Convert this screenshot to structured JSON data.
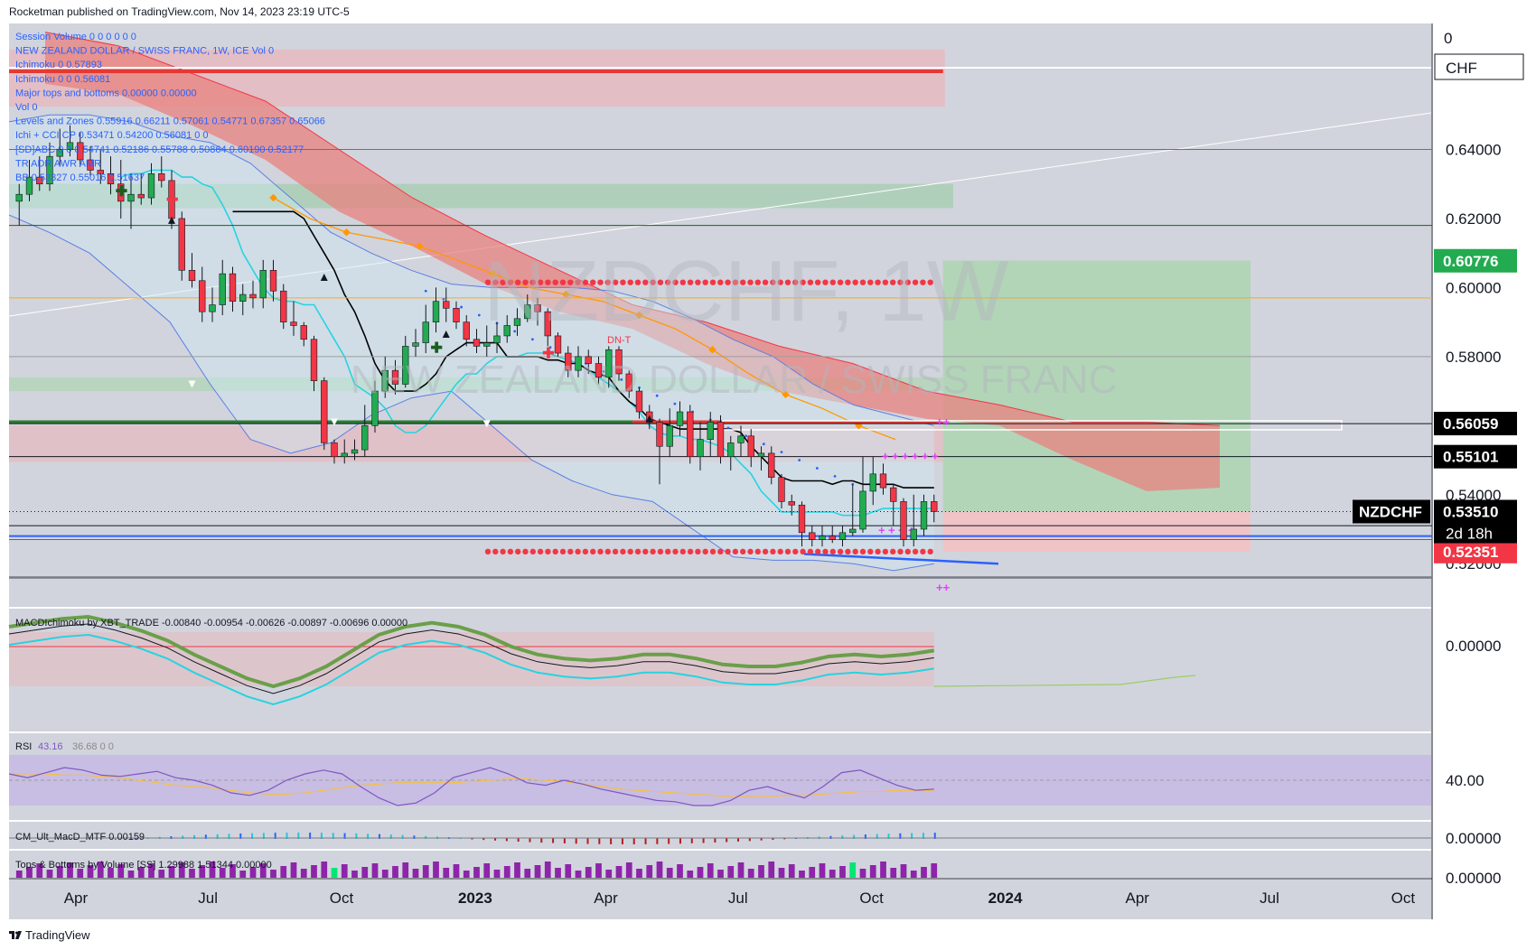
{
  "header": {
    "publisher_line": "Rocketman published on TradingView.com, Nov 14, 2023 23:19 UTC-5"
  },
  "footer": {
    "brand": "TradingView"
  },
  "watermark": {
    "symbol": "NZDCHF, 1W",
    "name": "NEW ZEALAND DOLLAR / SWISS FRANC"
  },
  "currency_box": "CHF",
  "top_scale_label": "0",
  "legend_lines": [
    {
      "text": "Session Volume  0  0  0  0  0  0",
      "color": "#2962ff"
    },
    {
      "text": "NEW ZEALAND DOLLAR / SWISS FRANC, 1W, ICE   Vol 0",
      "color": "#2962ff"
    },
    {
      "text": "Ichimoku  0  0.57893",
      "color": "#2962ff"
    },
    {
      "text": "Ichimoku  0  0  0.56081",
      "color": "#2962ff"
    },
    {
      "text": "Major tops and bottoms  0.00000  0.00000",
      "color": "#2962ff"
    },
    {
      "text": "Vol  0",
      "color": "#2962ff"
    },
    {
      "text": "Levels and Zones  0.55916  0.66211  0.57061  0.54771  0.67357  0.65066",
      "color": "#2962ff"
    },
    {
      "text": "Ichi + CCI  CP  0.53471  0.54200  0.56081  0  0",
      "color": "#2962ff"
    },
    {
      "text": "[SD]ABC  0  0  0.54741  0.52186  0.55788  0.50864  0.60190  0.52177",
      "color": "#2962ff"
    },
    {
      "text": "TR ADR AWR AMR",
      "color": "#2962ff"
    },
    {
      "text": "BB  0.53327  0.55016  0.51637",
      "color": "#2962ff"
    }
  ],
  "price_axis": {
    "ticks": [
      "0.64000",
      "0.62000",
      "0.60000",
      "0.58000",
      "0.54000",
      "0.52000"
    ],
    "price_tags": [
      {
        "label": "0.60776",
        "price": 0.60776,
        "bg": "#22ab50",
        "fg": "#ffffff"
      },
      {
        "label": "0.56059",
        "price": 0.56059,
        "bg": "#000000",
        "fg": "#ffffff"
      },
      {
        "label": "0.55101",
        "price": 0.55101,
        "bg": "#000000",
        "fg": "#ffffff"
      },
      {
        "label": "0.53510",
        "price": 0.5351,
        "bg": "#000000",
        "fg": "#ffffff"
      },
      {
        "label": "0.52351",
        "price": 0.52351,
        "bg": "#f23645",
        "fg": "#ffffff"
      }
    ],
    "symbol_tag": "NZDCHF",
    "countdown": "2d 18h"
  },
  "time_axis": {
    "labels": [
      {
        "text": "Apr",
        "bold": false
      },
      {
        "text": "Jul",
        "bold": false
      },
      {
        "text": "Oct",
        "bold": false
      },
      {
        "text": "2023",
        "bold": true
      },
      {
        "text": "Apr",
        "bold": false
      },
      {
        "text": "Jul",
        "bold": false
      },
      {
        "text": "Oct",
        "bold": false
      },
      {
        "text": "2024",
        "bold": true
      },
      {
        "text": "Apr",
        "bold": false
      },
      {
        "text": "Jul",
        "bold": false
      },
      {
        "text": "Oct",
        "bold": false
      }
    ]
  },
  "chart_annotations": {
    "dn_label": "DN-T"
  },
  "indicator_panes": {
    "macd": {
      "legend": "MACDIchimoku by XBT_TRADE  -0.00840  -0.00954  -0.00626  -0.00897  -0.00696  0.00000",
      "axis_label": "0.00000"
    },
    "rsi": {
      "legend_name": "RSI",
      "legend_value": "43.16",
      "legend_rest": "36.68  0  0",
      "axis_label": "40.00"
    },
    "cm_macd": {
      "legend": "CM_Ult_MacD_MTF  0.00159",
      "axis_label": "0.00000"
    },
    "tops_bottoms": {
      "legend": "Tops & Bottoms by Volume [SS]  1.29988  1.51344  0.00000",
      "axis_label": "0.00000"
    }
  },
  "colors": {
    "up": "#22ab50",
    "down": "#f23645",
    "cloud_red": "#e8817f",
    "ichi_span": "#cfe8f2",
    "kijun": "#000000",
    "tenkan": "#27d3e0",
    "orange": "#ff9800",
    "bb": "#5b7ee5",
    "long_tp": "#a5d6a7",
    "long_sl": "#f6c1c3",
    "bg": "#d1d4dc"
  },
  "chart_data": {
    "type": "candlestick",
    "title": "NZDCHF, 1W",
    "xlabel": "",
    "ylabel": "CHF",
    "ylim": [
      0.5075,
      0.6765
    ],
    "x_range": [
      "2022-02-14",
      "2024-10-21"
    ],
    "x": [
      "2022-02-21",
      "2022-02-28",
      "2022-03-07",
      "2022-03-14",
      "2022-03-21",
      "2022-03-28",
      "2022-04-04",
      "2022-04-11",
      "2022-04-18",
      "2022-04-25",
      "2022-05-02",
      "2022-05-09",
      "2022-05-16",
      "2022-05-23",
      "2022-05-30",
      "2022-06-06",
      "2022-06-13",
      "2022-06-20",
      "2022-06-27",
      "2022-07-04",
      "2022-07-11",
      "2022-07-18",
      "2022-07-25",
      "2022-08-01",
      "2022-08-08",
      "2022-08-15",
      "2022-08-22",
      "2022-08-29",
      "2022-09-05",
      "2022-09-12",
      "2022-09-19",
      "2022-09-26",
      "2022-10-03",
      "2022-10-10",
      "2022-10-17",
      "2022-10-24",
      "2022-10-31",
      "2022-11-07",
      "2022-11-14",
      "2022-11-21",
      "2022-11-28",
      "2022-12-05",
      "2022-12-12",
      "2022-12-19",
      "2022-12-26",
      "2023-01-02",
      "2023-01-09",
      "2023-01-16",
      "2023-01-23",
      "2023-01-30",
      "2023-02-06",
      "2023-02-13",
      "2023-02-20",
      "2023-02-27",
      "2023-03-06",
      "2023-03-13",
      "2023-03-20",
      "2023-03-27",
      "2023-04-03",
      "2023-04-10",
      "2023-04-17",
      "2023-04-24",
      "2023-05-01",
      "2023-05-08",
      "2023-05-15",
      "2023-05-22",
      "2023-05-29",
      "2023-06-05",
      "2023-06-12",
      "2023-06-19",
      "2023-06-26",
      "2023-07-03",
      "2023-07-10",
      "2023-07-17",
      "2023-07-24",
      "2023-07-31",
      "2023-08-07",
      "2023-08-14",
      "2023-08-21",
      "2023-08-28",
      "2023-09-04",
      "2023-09-11",
      "2023-09-18",
      "2023-09-25",
      "2023-10-02",
      "2023-10-09",
      "2023-10-16",
      "2023-10-23",
      "2023-10-30",
      "2023-11-06",
      "2023-11-13"
    ],
    "open": [
      0.625,
      0.627,
      0.632,
      0.63,
      0.638,
      0.64,
      0.642,
      0.637,
      0.634,
      0.633,
      0.63,
      0.625,
      0.627,
      0.626,
      0.633,
      0.631,
      0.62,
      0.605,
      0.602,
      0.593,
      0.595,
      0.604,
      0.596,
      0.598,
      0.597,
      0.605,
      0.599,
      0.59,
      0.589,
      0.585,
      0.573,
      0.555,
      0.551,
      0.552,
      0.553,
      0.56,
      0.57,
      0.576,
      0.572,
      0.583,
      0.584,
      0.59,
      0.596,
      0.594,
      0.59,
      0.585,
      0.583,
      0.584,
      0.586,
      0.589,
      0.591,
      0.595,
      0.593,
      0.586,
      0.581,
      0.576,
      0.58,
      0.578,
      0.574,
      0.582,
      0.575,
      0.57,
      0.564,
      0.561,
      0.554,
      0.56,
      0.564,
      0.551,
      0.556,
      0.561,
      0.551,
      0.555,
      0.557,
      0.551,
      0.552,
      0.545,
      0.538,
      0.537,
      0.529,
      0.527,
      0.528,
      0.527,
      0.529,
      0.53,
      0.541,
      0.546,
      0.542,
      0.538,
      0.527,
      0.53,
      0.538
    ],
    "high": [
      0.63,
      0.637,
      0.638,
      0.642,
      0.646,
      0.647,
      0.645,
      0.641,
      0.64,
      0.638,
      0.637,
      0.633,
      0.633,
      0.636,
      0.638,
      0.634,
      0.622,
      0.61,
      0.606,
      0.6,
      0.608,
      0.606,
      0.601,
      0.602,
      0.608,
      0.608,
      0.601,
      0.596,
      0.59,
      0.586,
      0.574,
      0.556,
      0.556,
      0.556,
      0.566,
      0.573,
      0.58,
      0.579,
      0.586,
      0.588,
      0.595,
      0.6,
      0.6,
      0.596,
      0.592,
      0.588,
      0.589,
      0.59,
      0.592,
      0.594,
      0.598,
      0.597,
      0.594,
      0.587,
      0.583,
      0.583,
      0.582,
      0.58,
      0.583,
      0.583,
      0.576,
      0.571,
      0.566,
      0.562,
      0.565,
      0.567,
      0.566,
      0.561,
      0.564,
      0.563,
      0.557,
      0.56,
      0.559,
      0.554,
      0.554,
      0.546,
      0.54,
      0.538,
      0.531,
      0.531,
      0.531,
      0.531,
      0.543,
      0.551,
      0.551,
      0.549,
      0.543,
      0.539,
      0.54,
      0.54,
      0.54
    ],
    "low": [
      0.618,
      0.625,
      0.628,
      0.628,
      0.635,
      0.638,
      0.635,
      0.632,
      0.63,
      0.627,
      0.62,
      0.617,
      0.624,
      0.624,
      0.629,
      0.617,
      0.602,
      0.6,
      0.59,
      0.59,
      0.592,
      0.593,
      0.592,
      0.594,
      0.594,
      0.596,
      0.588,
      0.586,
      0.583,
      0.57,
      0.553,
      0.549,
      0.549,
      0.55,
      0.551,
      0.558,
      0.568,
      0.569,
      0.571,
      0.58,
      0.581,
      0.587,
      0.59,
      0.588,
      0.583,
      0.581,
      0.58,
      0.581,
      0.584,
      0.586,
      0.59,
      0.589,
      0.583,
      0.58,
      0.574,
      0.574,
      0.575,
      0.572,
      0.571,
      0.573,
      0.568,
      0.562,
      0.559,
      0.543,
      0.551,
      0.557,
      0.549,
      0.547,
      0.551,
      0.549,
      0.547,
      0.551,
      0.548,
      0.547,
      0.543,
      0.536,
      0.534,
      0.525,
      0.525,
      0.525,
      0.526,
      0.525,
      0.528,
      0.529,
      0.537,
      0.54,
      0.531,
      0.525,
      0.525,
      0.528,
      0.532
    ],
    "close": [
      0.627,
      0.632,
      0.63,
      0.638,
      0.64,
      0.642,
      0.637,
      0.634,
      0.633,
      0.63,
      0.625,
      0.627,
      0.626,
      0.633,
      0.631,
      0.62,
      0.605,
      0.602,
      0.593,
      0.595,
      0.604,
      0.596,
      0.598,
      0.597,
      0.605,
      0.599,
      0.59,
      0.589,
      0.585,
      0.573,
      0.555,
      0.551,
      0.552,
      0.553,
      0.56,
      0.57,
      0.576,
      0.572,
      0.583,
      0.584,
      0.59,
      0.596,
      0.594,
      0.59,
      0.585,
      0.583,
      0.584,
      0.586,
      0.589,
      0.591,
      0.595,
      0.593,
      0.586,
      0.581,
      0.576,
      0.58,
      0.578,
      0.574,
      0.582,
      0.575,
      0.57,
      0.564,
      0.561,
      0.554,
      0.56,
      0.564,
      0.551,
      0.556,
      0.561,
      0.551,
      0.555,
      0.557,
      0.551,
      0.552,
      0.545,
      0.538,
      0.537,
      0.529,
      0.527,
      0.528,
      0.527,
      0.529,
      0.53,
      0.541,
      0.546,
      0.542,
      0.538,
      0.527,
      0.53,
      0.538,
      0.5351
    ],
    "kijun": [
      0.632,
      0.633,
      0.633,
      0.634,
      0.634,
      0.634,
      0.632,
      0.632,
      0.63,
      0.629,
      0.624,
      0.618,
      0.61,
      0.605,
      0.6,
      0.597,
      0.596,
      0.596,
      0.595,
      0.595,
      0.59,
      0.585,
      0.58,
      0.572,
      0.57,
      0.568,
      0.565,
      0.56,
      0.558,
      0.558,
      0.56,
      0.564,
      0.568,
      0.572,
      0.575,
      0.575,
      0.578,
      0.58,
      0.58,
      0.58,
      0.581,
      0.581,
      0.581,
      0.58,
      0.579,
      0.578,
      0.576,
      0.574,
      0.572,
      0.57,
      0.567,
      0.564,
      0.56,
      0.558,
      0.557,
      0.557,
      0.556,
      0.556,
      0.555,
      0.554,
      0.552,
      0.549,
      0.546,
      0.541,
      0.538,
      0.535,
      0.535,
      0.535,
      0.535,
      0.535,
      0.535,
      0.534,
      0.534,
      0.534,
      0.535,
      0.536,
      0.536,
      0.536,
      0.536,
      0.536,
      0.536
    ],
    "kijun_x0": 10,
    "tenkan": [
      0.622,
      0.622,
      0.622,
      0.622,
      0.622,
      0.622,
      0.622,
      0.62,
      0.615,
      0.61,
      0.605,
      0.598,
      0.593,
      0.586,
      0.578,
      0.573,
      0.57,
      0.57,
      0.57,
      0.572,
      0.575,
      0.58,
      0.582,
      0.584,
      0.584,
      0.584,
      0.584,
      0.58,
      0.58,
      0.58,
      0.58,
      0.579,
      0.579,
      0.578,
      0.578,
      0.576,
      0.575,
      0.574,
      0.57,
      0.567,
      0.565,
      0.562,
      0.561,
      0.56,
      0.559,
      0.559,
      0.559,
      0.559,
      0.559,
      0.559,
      0.558,
      0.554,
      0.551,
      0.548,
      0.545,
      0.544,
      0.544,
      0.544,
      0.544,
      0.543,
      0.544,
      0.544,
      0.543,
      0.543,
      0.543,
      0.543,
      0.542,
      0.542,
      0.542,
      0.542
    ],
    "tenkan_x0": 21,
    "span_a_upper": [
      0.674,
      0.674,
      0.674,
      0.674,
      0.674,
      0.67,
      0.664,
      0.66,
      0.654,
      0.646,
      0.638,
      0.63,
      0.622,
      0.612,
      0.604,
      0.596,
      0.588,
      0.583,
      0.579,
      0.578
    ],
    "cloud_x": [
      0.0,
      0.05,
      0.1,
      0.2,
      0.3,
      0.4,
      0.5,
      0.6,
      0.7,
      0.8
    ],
    "bb_upper": [
      0.648,
      0.65,
      0.65,
      0.648,
      0.644,
      0.642,
      0.636,
      0.626,
      0.616,
      0.61,
      0.605,
      0.601,
      0.6,
      0.6,
      0.6,
      0.599,
      0.596,
      0.591,
      0.585,
      0.58,
      0.572,
      0.566,
      0.563,
      0.56
    ],
    "bb_lower": [
      0.621,
      0.616,
      0.61,
      0.6,
      0.59,
      0.572,
      0.556,
      0.552,
      0.555,
      0.563,
      0.568,
      0.57,
      0.56,
      0.55,
      0.544,
      0.54,
      0.538,
      0.53,
      0.522,
      0.521,
      0.521,
      0.52,
      0.518,
      0.52
    ],
    "red_dot_lines": [
      0.6015,
      0.5235
    ],
    "support_levels": [
      0.561,
      0.5235,
      0.521,
      0.618,
      0.64
    ],
    "trade_setup": {
      "type": "long",
      "entry": 0.5351,
      "stop": 0.5235,
      "target": 0.6078
    }
  },
  "rsi_data": {
    "values": [
      55,
      52,
      56,
      60,
      58,
      54,
      53,
      55,
      57,
      52,
      50,
      46,
      40,
      38,
      42,
      50,
      55,
      58,
      55,
      45,
      36,
      30,
      32,
      40,
      52,
      56,
      60,
      55,
      48,
      46,
      50,
      47,
      43,
      40,
      37,
      34,
      33,
      30,
      30,
      34,
      42,
      45,
      40,
      36,
      45,
      56,
      58,
      52,
      46,
      42,
      43
    ],
    "signal": [
      55,
      55,
      55,
      54,
      54,
      53,
      52,
      50,
      48,
      46,
      45,
      44,
      42,
      40,
      39,
      39,
      40,
      42,
      44,
      46,
      47,
      48,
      48,
      48,
      48,
      49,
      50,
      51,
      51,
      50,
      49,
      47,
      45,
      43,
      42,
      41,
      40,
      39,
      38,
      37,
      37,
      37,
      38,
      38,
      39,
      40,
      41,
      41,
      42,
      42,
      42
    ],
    "range": [
      20,
      80
    ]
  },
  "macd_data": {
    "macd": [
      0.01,
      0.012,
      0.014,
      0.015,
      0.012,
      0.008,
      0.003,
      -0.004,
      -0.01,
      -0.016,
      -0.02,
      -0.016,
      -0.01,
      -0.002,
      0.006,
      0.01,
      0.012,
      0.01,
      0.006,
      0.0,
      -0.004,
      -0.006,
      -0.007,
      -0.006,
      -0.004,
      -0.004,
      -0.006,
      -0.009,
      -0.01,
      -0.01,
      -0.008,
      -0.005,
      -0.004,
      -0.005,
      -0.004,
      -0.002
    ]
  }
}
